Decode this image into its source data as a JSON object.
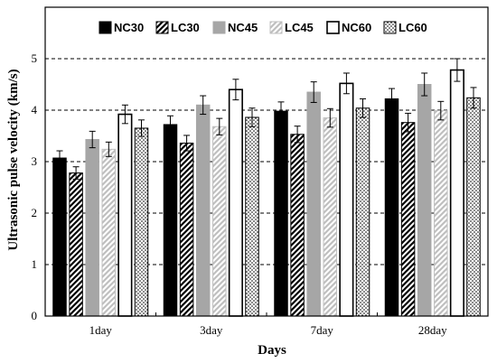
{
  "chart_data": {
    "type": "bar",
    "xlabel": "Days",
    "ylabel": "Ultrasonic pulse velocity (km/s)",
    "ylim": [
      0,
      6
    ],
    "yticks": [
      0,
      1,
      2,
      3,
      4,
      5
    ],
    "grid": "horizontal dashed",
    "legend_position": "top",
    "categories": [
      "1day",
      "3day",
      "7day",
      "28day"
    ],
    "series": [
      {
        "name": "NC30",
        "values": [
          3.07,
          3.72,
          3.98,
          4.22
        ],
        "errors": [
          0.14,
          0.17,
          0.18,
          0.2
        ],
        "fill": "#000000",
        "pattern": "solid"
      },
      {
        "name": "LC30",
        "values": [
          2.78,
          3.36,
          3.53,
          3.76
        ],
        "errors": [
          0.12,
          0.15,
          0.16,
          0.18
        ],
        "fill": "#000000",
        "pattern": "hatch-black"
      },
      {
        "name": "NC45",
        "values": [
          3.43,
          4.1,
          4.35,
          4.5
        ],
        "errors": [
          0.16,
          0.18,
          0.2,
          0.22
        ],
        "fill": "#a6a6a6",
        "pattern": "solid"
      },
      {
        "name": "LC45",
        "values": [
          3.24,
          3.68,
          3.85,
          3.99
        ],
        "errors": [
          0.14,
          0.16,
          0.18,
          0.18
        ],
        "fill": "#bfbfbf",
        "pattern": "hatch-gray"
      },
      {
        "name": "NC60",
        "values": [
          3.92,
          4.4,
          4.52,
          4.78
        ],
        "errors": [
          0.18,
          0.2,
          0.2,
          0.22
        ],
        "fill": "#ffffff",
        "pattern": "hollow"
      },
      {
        "name": "LC60",
        "values": [
          3.65,
          3.86,
          4.04,
          4.24
        ],
        "errors": [
          0.16,
          0.18,
          0.18,
          0.2
        ],
        "fill": "#ffffff",
        "pattern": "dots"
      }
    ]
  }
}
